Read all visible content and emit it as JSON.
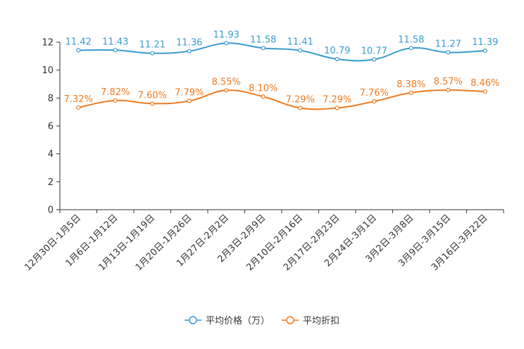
{
  "chart_data": {
    "type": "line",
    "categories": [
      "12月30日-1月5日",
      "1月6日-1月12日",
      "1月13日-1月19日",
      "1月20日-1月26日",
      "1月27日-2月2日",
      "2月3日-2月9日",
      "2月10日-2月16日",
      "2月17日-2月23日",
      "2月24日-3月1日",
      "3月2日-3月8日",
      "3月9日-3月15日",
      "3月16日-3月22日"
    ],
    "ylim": [
      0,
      12
    ],
    "yticks": [
      "0",
      "2",
      "4",
      "6",
      "8",
      "10",
      "12"
    ],
    "series": [
      {
        "name": "平均价格（万）",
        "color": "#3a9bd0",
        "values": [
          11.42,
          11.43,
          11.21,
          11.36,
          11.93,
          11.58,
          11.41,
          10.79,
          10.77,
          11.58,
          11.27,
          11.39
        ],
        "labels": [
          "11.42",
          "11.43",
          "11.21",
          "11.36",
          "11.93",
          "11.58",
          "11.41",
          "10.79",
          "10.77",
          "11.58",
          "11.27",
          "11.39"
        ]
      },
      {
        "name": "平均折扣",
        "color": "#ee7a1f",
        "values": [
          7.32,
          7.82,
          7.6,
          7.79,
          8.55,
          8.1,
          7.29,
          7.29,
          7.76,
          8.38,
          8.57,
          8.46
        ],
        "labels": [
          "7.32%",
          "7.82%",
          "7.60%",
          "7.79%",
          "8.55%",
          "8.10%",
          "7.29%",
          "7.29%",
          "7.76%",
          "8.38%",
          "8.57%",
          "8.46%"
        ]
      }
    ]
  }
}
